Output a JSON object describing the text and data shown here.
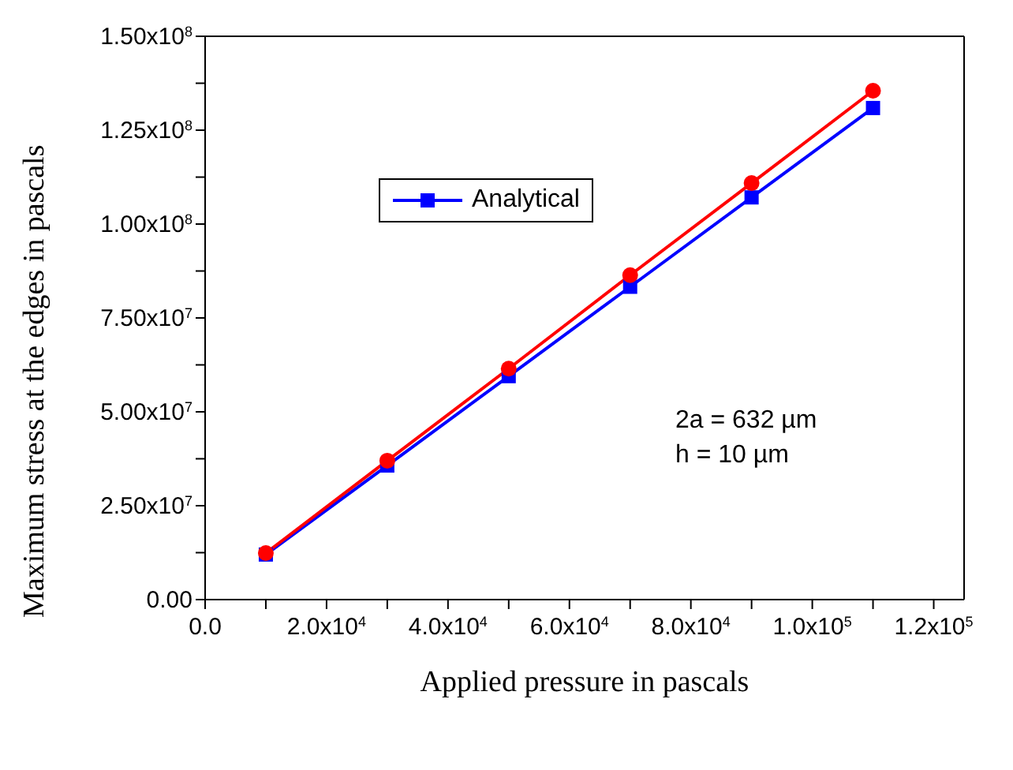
{
  "chart_data": {
    "type": "line",
    "xlabel": "Applied pressure in pascals",
    "ylabel": "Maximum  stress at the edges in pascals",
    "x": [
      10000,
      30000,
      50000,
      70000,
      90000,
      110000
    ],
    "series": [
      {
        "name": "Analytical",
        "color": "#0000ff",
        "marker": "square",
        "values": [
          12000000,
          35700000,
          59500000,
          83300000,
          107100000,
          130900000
        ]
      },
      {
        "color": "#ff0000",
        "marker": "circle",
        "values": [
          12400000,
          37000000,
          61500000,
          86400000,
          110900000,
          135500000
        ]
      }
    ],
    "xlim": [
      0,
      125000
    ],
    "xticks": [
      {
        "value": 0,
        "label": "0.0"
      },
      {
        "value": 10000,
        "label": null
      },
      {
        "value": 20000,
        "label": "2.0x10$^{4}$"
      },
      {
        "value": 30000,
        "label": null
      },
      {
        "value": 40000,
        "label": "4.0x10$^{4}$"
      },
      {
        "value": 50000,
        "label": null
      },
      {
        "value": 60000,
        "label": "6.0x10$^{4}$"
      },
      {
        "value": 70000,
        "label": null
      },
      {
        "value": 80000,
        "label": "8.0x10$^{4}$"
      },
      {
        "value": 90000,
        "label": null
      },
      {
        "value": 100000,
        "label": "1.0x10$^{5}$"
      },
      {
        "value": 110000,
        "label": null
      },
      {
        "value": 120000,
        "label": "1.2x10$^{5}$"
      }
    ],
    "ylim": [
      0,
      150000000
    ],
    "yticks": [
      {
        "value": 0,
        "label": "0.00"
      },
      {
        "value": 12500000,
        "label": null
      },
      {
        "value": 25000000,
        "label": "2.50x10$^{7}$"
      },
      {
        "value": 37500000,
        "label": null
      },
      {
        "value": 50000000,
        "label": "5.00x10$^{7}$"
      },
      {
        "value": 62500000,
        "label": null
      },
      {
        "value": 75000000,
        "label": "7.50x10$^{7}$"
      },
      {
        "value": 87500000,
        "label": null
      },
      {
        "value": 100000000,
        "label": "1.00x10$^{8}$"
      },
      {
        "value": 112500000,
        "label": null
      },
      {
        "value": 125000000,
        "label": "1.25x10$^{8}$"
      },
      {
        "value": 137500000,
        "label": null
      },
      {
        "value": 150000000,
        "label": "1.50x10$^{8}$"
      }
    ],
    "annotations": [
      "2a = 632 µm",
      "h = 10 µm"
    ],
    "legend": "top left",
    "line_style": "solid"
  }
}
